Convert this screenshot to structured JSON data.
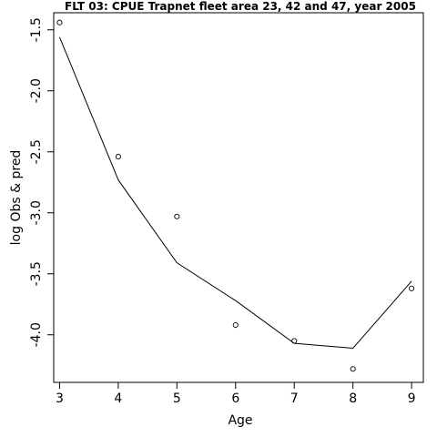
{
  "chart_data": {
    "type": "scatter",
    "title": "FLT 03: CPUE Trapnet fleet area 23, 42 and 47, year 2005",
    "xlabel": "Age",
    "ylabel": "log Obs & pred",
    "xlim": [
      2.9,
      9.2
    ],
    "ylim": [
      -4.39,
      -1.36
    ],
    "xticks": [
      3,
      4,
      5,
      6,
      7,
      8,
      9
    ],
    "xtick_labels": [
      "3",
      "4",
      "5",
      "6",
      "7",
      "8",
      "9"
    ],
    "yticks": [
      -1.5,
      -2.0,
      -2.5,
      -3.0,
      -3.5,
      -4.0
    ],
    "ytick_labels": [
      "-1.5",
      "-2.0",
      "-2.5",
      "-3.0",
      "-3.5",
      "-4.0"
    ],
    "grid": false,
    "series": [
      {
        "kind": "points",
        "x": [
          3,
          4,
          5,
          6,
          7,
          8,
          9
        ],
        "y": [
          -1.44,
          -2.54,
          -3.03,
          -3.92,
          -4.05,
          -4.28,
          -3.62
        ]
      },
      {
        "kind": "line",
        "x": [
          3,
          4,
          5,
          6,
          7,
          8,
          9
        ],
        "y": [
          -1.56,
          -2.73,
          -3.41,
          -3.72,
          -4.07,
          -4.11,
          -3.56
        ]
      }
    ]
  }
}
